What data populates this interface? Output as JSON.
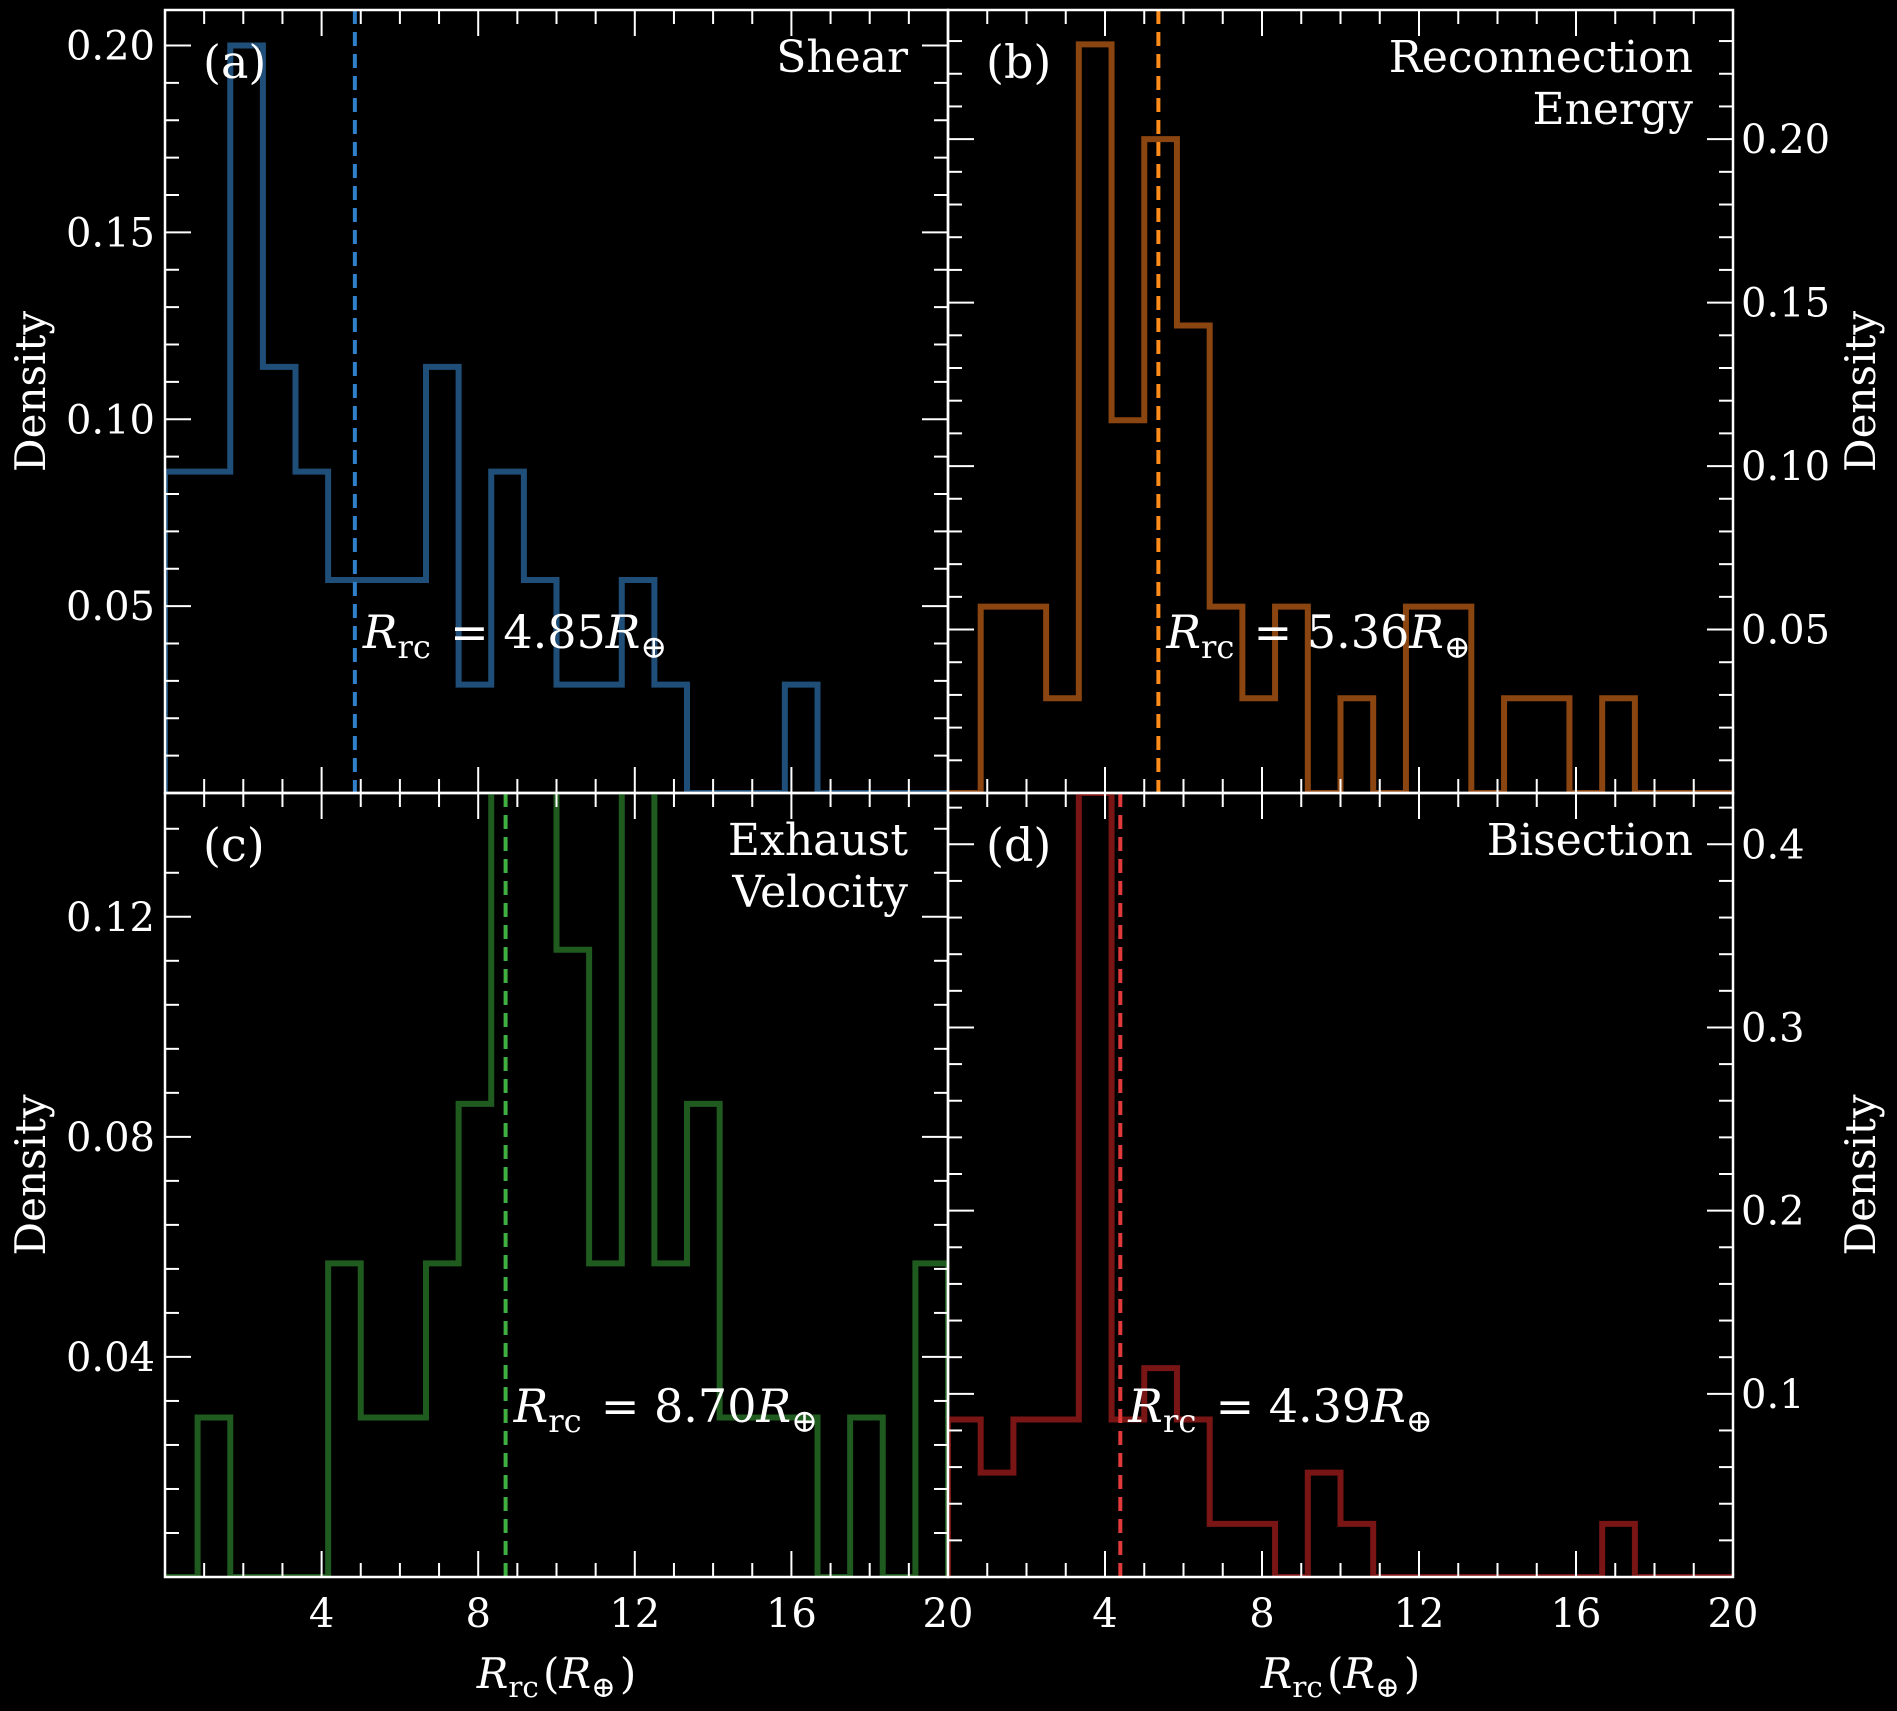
{
  "figure": {
    "background": "#000000",
    "foreground": "#ffffff",
    "xlabel": "R_rc(R_⊕)"
  },
  "chart_data": [
    {
      "type": "histogram",
      "letter": "(a)",
      "title": [
        "Shear"
      ],
      "ylabel": "Density",
      "color": "#1f4e79",
      "median_color": "#2f80c8",
      "median": 4.85,
      "median_label": "R_rc = 4.85R_⊕",
      "xlim": [
        0,
        20
      ],
      "ylim": [
        0,
        0.2095
      ],
      "xticks": [
        4,
        8,
        12,
        16,
        20
      ],
      "yticks": [
        0.05,
        0.1,
        0.15,
        0.2
      ],
      "ytick_labels": [
        "0.05",
        "0.10",
        "0.15",
        "0.20"
      ],
      "bin_edges": [
        0.0,
        0.833,
        1.667,
        2.5,
        3.333,
        4.167,
        5.0,
        5.833,
        6.667,
        7.5,
        8.333,
        9.167,
        10.0,
        10.833,
        11.667,
        12.5,
        13.333,
        14.167,
        15.0,
        15.833,
        16.667,
        17.5,
        18.333,
        19.167,
        20.0
      ],
      "values": [
        0.086,
        0.086,
        0.2,
        0.114,
        0.086,
        0.057,
        0.057,
        0.057,
        0.114,
        0.029,
        0.086,
        0.057,
        0.029,
        0.029,
        0.057,
        0.029,
        0,
        0,
        0,
        0.029,
        0,
        0,
        0,
        0
      ]
    },
    {
      "type": "histogram",
      "letter": "(b)",
      "title": [
        "Reconnection",
        "Energy"
      ],
      "ylabel": "Density",
      "color": "#8b4510",
      "median_color": "#ff8c1a",
      "median": 5.36,
      "median_label": "R_rc = 5.36R_⊕",
      "xlim": [
        0,
        20
      ],
      "ylim": [
        0,
        0.2395
      ],
      "xticks": [
        4,
        8,
        12,
        16,
        20
      ],
      "yticks": [
        0.05,
        0.1,
        0.15,
        0.2
      ],
      "ytick_labels": [
        "0.05",
        "0.10",
        "0.15",
        "0.20"
      ],
      "bin_edges": [
        0.0,
        0.833,
        1.667,
        2.5,
        3.333,
        4.167,
        5.0,
        5.833,
        6.667,
        7.5,
        8.333,
        9.167,
        10.0,
        10.833,
        11.667,
        12.5,
        13.333,
        14.167,
        15.0,
        15.833,
        16.667,
        17.5,
        18.333,
        19.167,
        20.0
      ],
      "values": [
        0,
        0.057,
        0.057,
        0.029,
        0.229,
        0.114,
        0.2,
        0.143,
        0.057,
        0.029,
        0.057,
        0,
        0.029,
        0,
        0.057,
        0.057,
        0,
        0.029,
        0.029,
        0,
        0.029,
        0,
        0,
        0
      ]
    },
    {
      "type": "histogram",
      "letter": "(c)",
      "title": [
        "Exhaust",
        "Velocity"
      ],
      "ylabel": "Density",
      "color": "#1f5a1f",
      "median_color": "#3fb03f",
      "median": 8.7,
      "median_label": "R_rc = 8.70R_⊕",
      "xlim": [
        0,
        20
      ],
      "ylim": [
        0,
        0.1425
      ],
      "xticks": [
        4,
        8,
        12,
        16,
        20
      ],
      "yticks": [
        0.04,
        0.08,
        0.12
      ],
      "ytick_labels": [
        "0.04",
        "0.08",
        "0.12"
      ],
      "bin_edges": [
        0.0,
        0.833,
        1.667,
        2.5,
        3.333,
        4.167,
        5.0,
        5.833,
        6.667,
        7.5,
        8.333,
        9.167,
        10.0,
        10.833,
        11.667,
        12.5,
        13.333,
        14.167,
        15.0,
        15.833,
        16.667,
        17.5,
        18.333,
        19.167,
        20.0
      ],
      "values": [
        0,
        0.029,
        0,
        0,
        0,
        0.057,
        0.029,
        0.029,
        0.057,
        0.086,
        0.143,
        0.143,
        0.114,
        0.057,
        0.143,
        0.057,
        0.086,
        0.029,
        0.029,
        0.029,
        0,
        0.029,
        0,
        0.057
      ]
    },
    {
      "type": "histogram",
      "letter": "(d)",
      "title": [
        "Bisection"
      ],
      "ylabel": "Density",
      "color": "#7a1515",
      "median_color": "#e03a3a",
      "median": 4.39,
      "median_label": "R_rc = 4.39R_⊕",
      "xlim": [
        0,
        20
      ],
      "ylim": [
        0,
        0.428
      ],
      "xticks": [
        4,
        8,
        12,
        16,
        20
      ],
      "yticks": [
        0.1,
        0.2,
        0.3,
        0.4
      ],
      "ytick_labels": [
        "0.1",
        "0.2",
        "0.3",
        "0.4"
      ],
      "bin_edges": [
        0.0,
        0.833,
        1.667,
        2.5,
        3.333,
        4.167,
        5.0,
        5.833,
        6.667,
        7.5,
        8.333,
        9.167,
        10.0,
        10.833,
        11.667,
        12.5,
        13.333,
        14.167,
        15.0,
        15.833,
        16.667,
        17.5,
        18.333,
        19.167,
        20.0
      ],
      "values": [
        0.086,
        0.057,
        0.086,
        0.086,
        0.428,
        0.086,
        0.114,
        0.086,
        0.029,
        0.029,
        0,
        0.057,
        0.029,
        0,
        0,
        0,
        0,
        0,
        0,
        0,
        0.029,
        0,
        0,
        0
      ]
    }
  ]
}
